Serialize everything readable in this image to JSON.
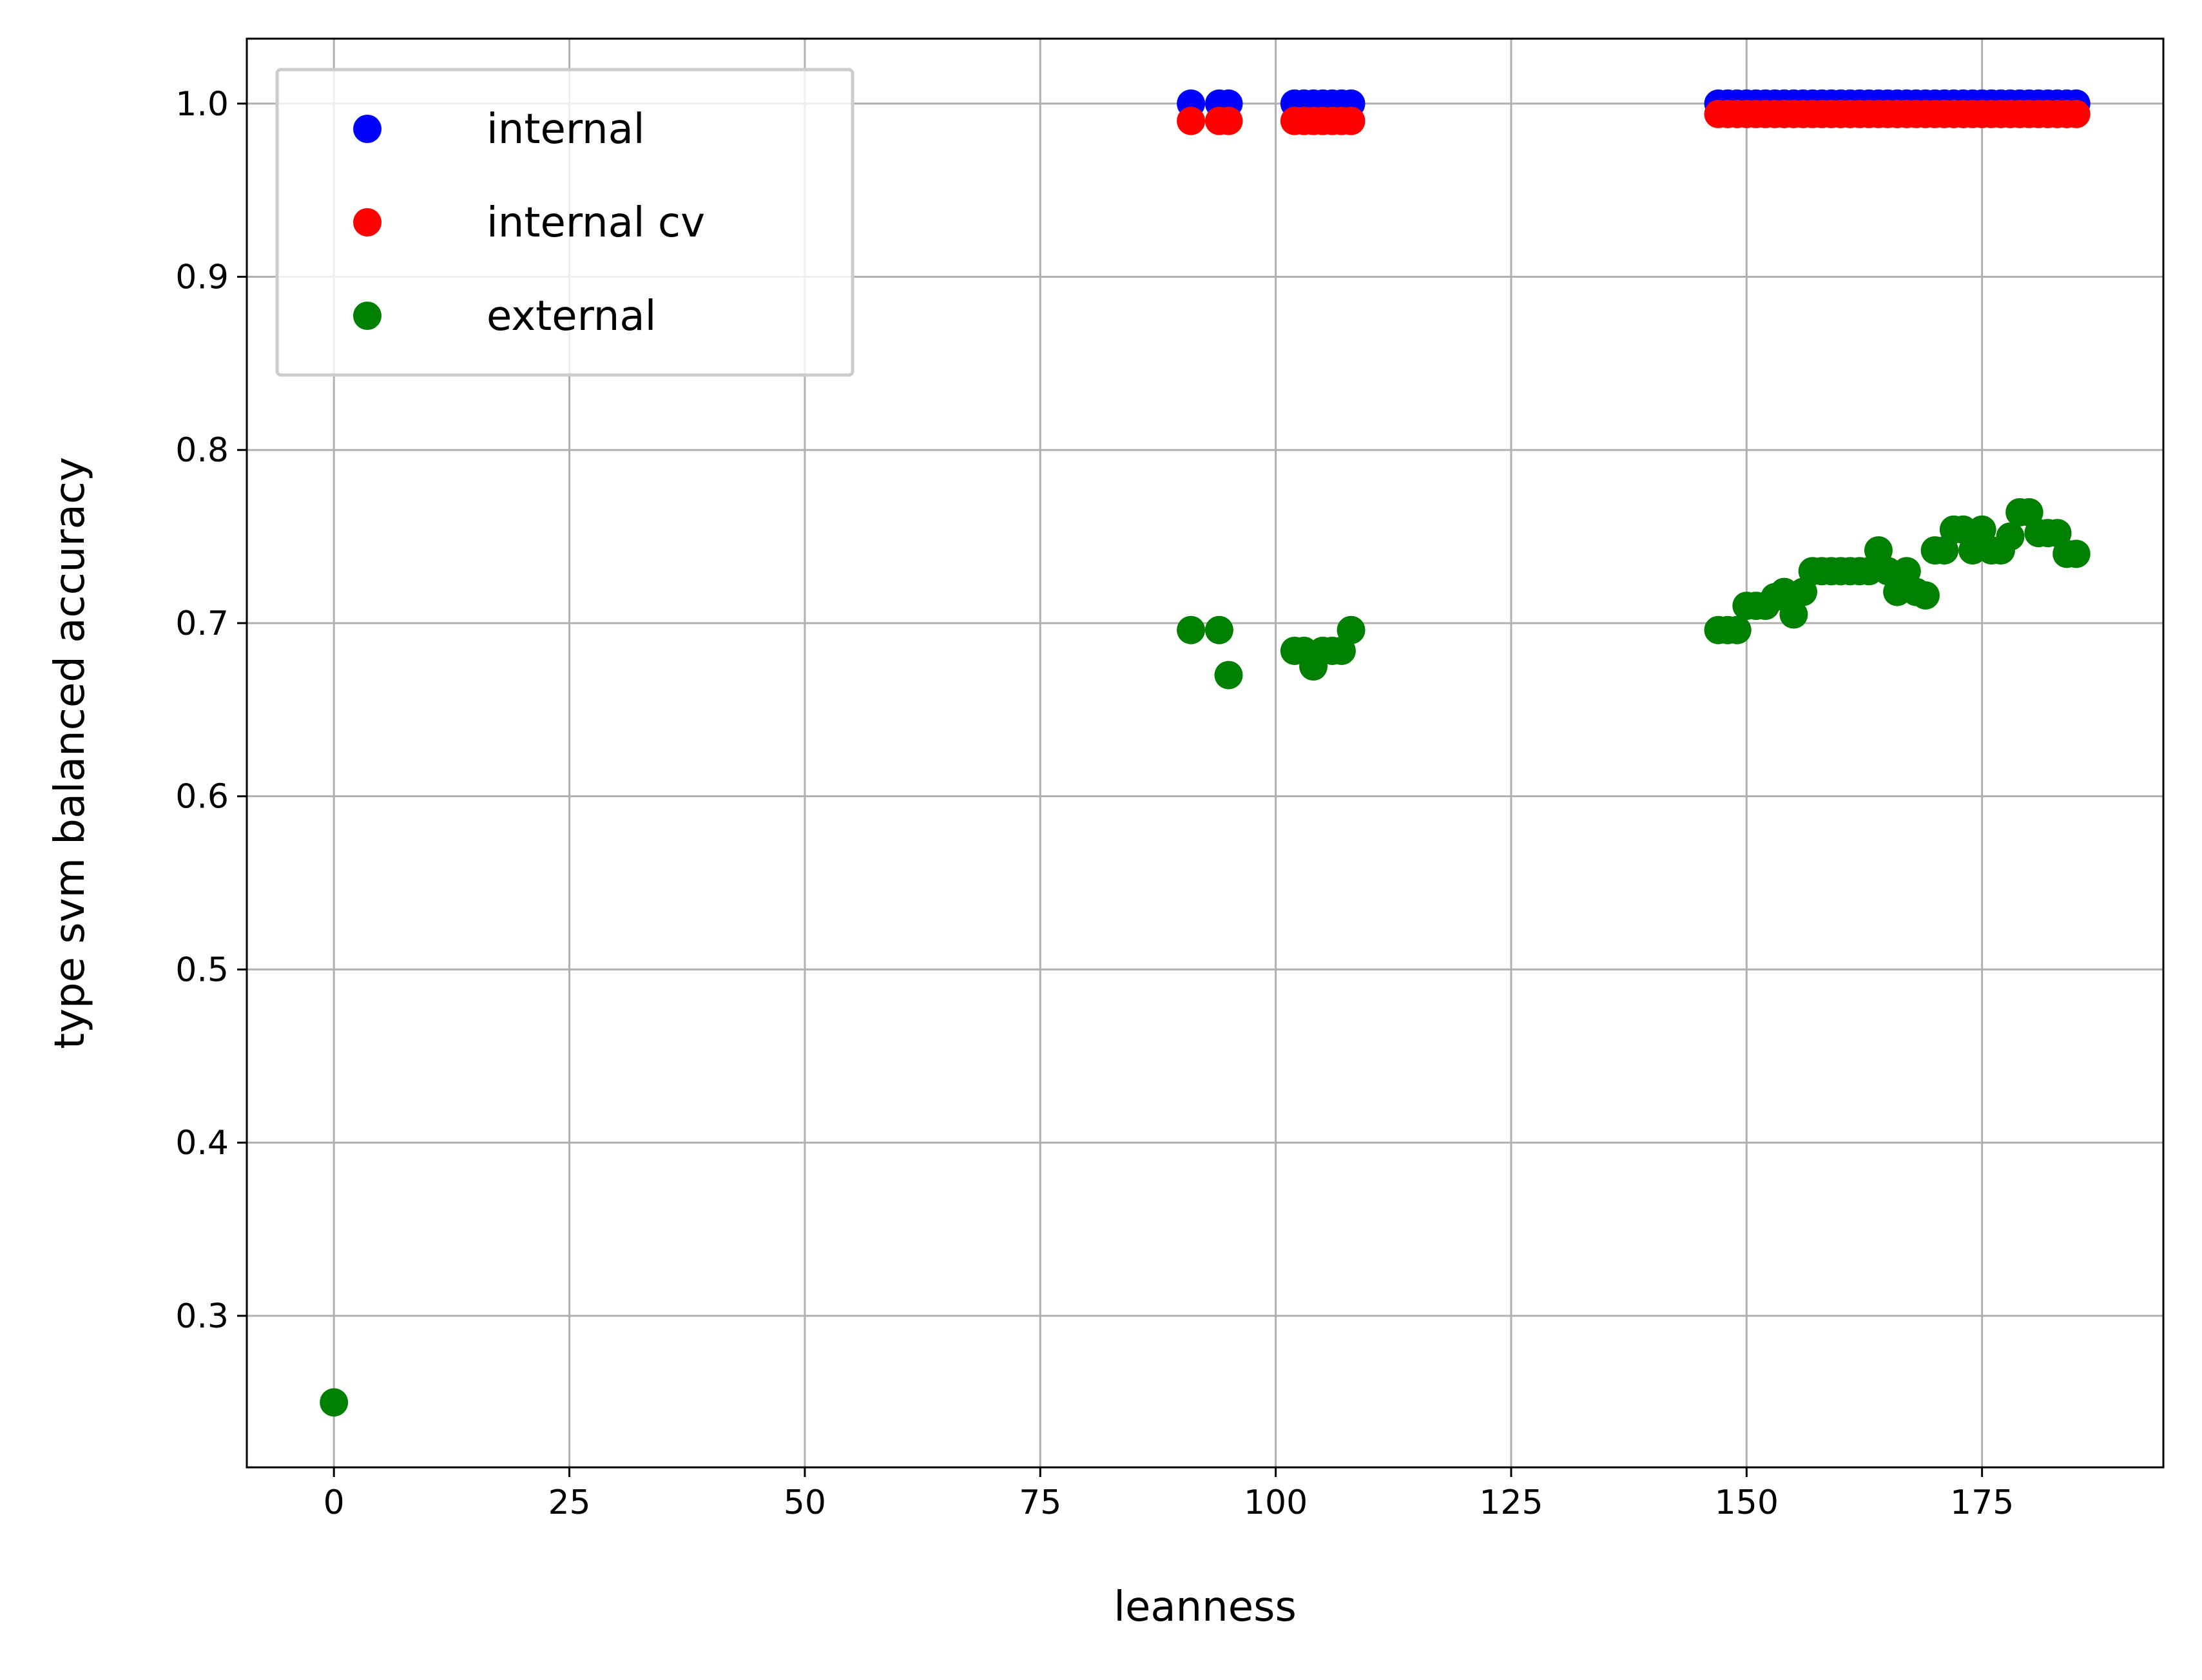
{
  "chart_data": {
    "type": "scatter",
    "title": "",
    "xlabel": "leanness",
    "ylabel": "type svm balanced accuracy",
    "xlim": [
      -9.25,
      194.25
    ],
    "ylim": [
      0.2125,
      1.0375
    ],
    "xticks": [
      0,
      25,
      50,
      75,
      100,
      125,
      150,
      175
    ],
    "xtick_labels": [
      "0",
      "25",
      "50",
      "75",
      "100",
      "125",
      "150",
      "175"
    ],
    "yticks": [
      0.3,
      0.4,
      0.5,
      0.6,
      0.7,
      0.8,
      0.9,
      1.0
    ],
    "ytick_labels": [
      "0.3",
      "0.4",
      "0.5",
      "0.6",
      "0.7",
      "0.8",
      "0.9",
      "1.0"
    ],
    "grid": true,
    "legend_position": "top-left",
    "series": [
      {
        "name": "internal",
        "color": "#0000ff",
        "x": [
          91,
          94,
          95,
          102,
          103,
          104,
          105,
          106,
          107,
          108,
          147,
          148,
          149,
          150,
          151,
          152,
          153,
          154,
          155,
          156,
          157,
          158,
          159,
          160,
          161,
          162,
          163,
          164,
          165,
          166,
          167,
          168,
          169,
          170,
          171,
          172,
          173,
          174,
          175,
          176,
          177,
          178,
          179,
          180,
          181,
          182,
          183,
          184,
          185
        ],
        "y": [
          1.0,
          1.0,
          1.0,
          1.0,
          1.0,
          1.0,
          1.0,
          1.0,
          1.0,
          1.0,
          1.0,
          1.0,
          1.0,
          1.0,
          1.0,
          1.0,
          1.0,
          1.0,
          1.0,
          1.0,
          1.0,
          1.0,
          1.0,
          1.0,
          1.0,
          1.0,
          1.0,
          1.0,
          1.0,
          1.0,
          1.0,
          1.0,
          1.0,
          1.0,
          1.0,
          1.0,
          1.0,
          1.0,
          1.0,
          1.0,
          1.0,
          1.0,
          1.0,
          1.0,
          1.0,
          1.0,
          1.0,
          1.0,
          1.0
        ]
      },
      {
        "name": "internal cv",
        "color": "#ff0000",
        "x": [
          91,
          94,
          95,
          102,
          103,
          104,
          105,
          106,
          107,
          108,
          147,
          148,
          149,
          150,
          151,
          152,
          153,
          154,
          155,
          156,
          157,
          158,
          159,
          160,
          161,
          162,
          163,
          164,
          165,
          166,
          167,
          168,
          169,
          170,
          171,
          172,
          173,
          174,
          175,
          176,
          177,
          178,
          179,
          180,
          181,
          182,
          183,
          184,
          185
        ],
        "y": [
          0.99,
          0.99,
          0.99,
          0.99,
          0.99,
          0.99,
          0.99,
          0.99,
          0.99,
          0.99,
          0.994,
          0.994,
          0.994,
          0.994,
          0.994,
          0.994,
          0.994,
          0.994,
          0.994,
          0.994,
          0.994,
          0.994,
          0.994,
          0.994,
          0.994,
          0.994,
          0.994,
          0.994,
          0.994,
          0.994,
          0.994,
          0.994,
          0.994,
          0.994,
          0.994,
          0.994,
          0.994,
          0.994,
          0.994,
          0.994,
          0.994,
          0.994,
          0.994,
          0.994,
          0.994,
          0.994,
          0.994,
          0.994,
          0.994
        ]
      },
      {
        "name": "external",
        "color": "#008000",
        "x": [
          0,
          91,
          94,
          95,
          102,
          103,
          104,
          105,
          106,
          107,
          108,
          147,
          148,
          149,
          150,
          151,
          152,
          153,
          154,
          155,
          156,
          157,
          158,
          159,
          160,
          161,
          162,
          163,
          164,
          165,
          166,
          167,
          168,
          169,
          170,
          171,
          172,
          173,
          174,
          175,
          176,
          177,
          178,
          179,
          180,
          181,
          182,
          183,
          184,
          185
        ],
        "y": [
          0.25,
          0.696,
          0.696,
          0.67,
          0.684,
          0.684,
          0.675,
          0.684,
          0.684,
          0.684,
          0.696,
          0.696,
          0.696,
          0.696,
          0.71,
          0.71,
          0.71,
          0.715,
          0.718,
          0.705,
          0.718,
          0.73,
          0.73,
          0.73,
          0.73,
          0.73,
          0.73,
          0.73,
          0.742,
          0.73,
          0.718,
          0.73,
          0.718,
          0.716,
          0.742,
          0.742,
          0.754,
          0.754,
          0.742,
          0.754,
          0.742,
          0.742,
          0.75,
          0.764,
          0.764,
          0.752,
          0.752,
          0.752,
          0.74,
          0.74
        ]
      }
    ]
  }
}
